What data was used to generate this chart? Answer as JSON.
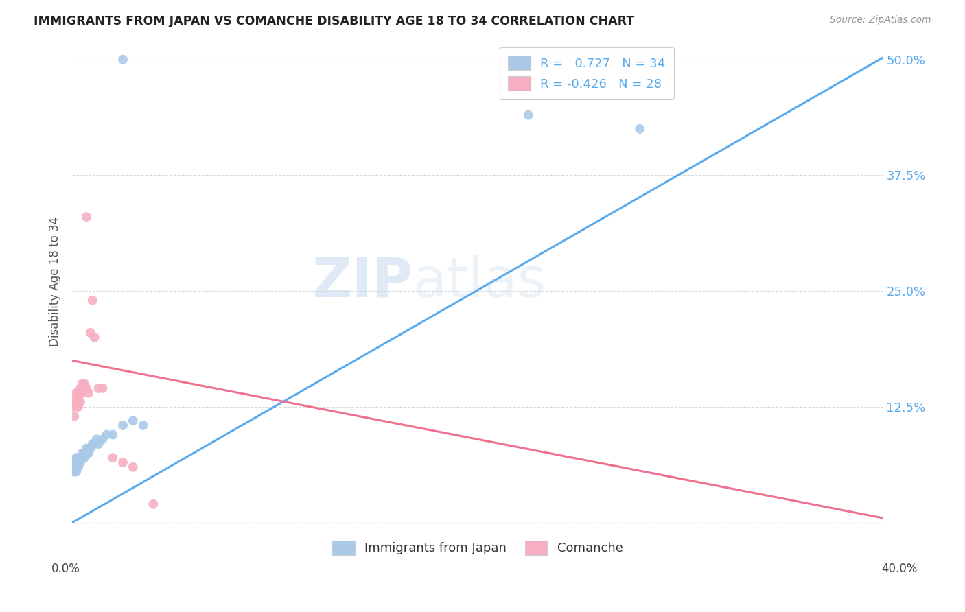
{
  "title": "IMMIGRANTS FROM JAPAN VS COMANCHE DISABILITY AGE 18 TO 34 CORRELATION CHART",
  "source": "Source: ZipAtlas.com",
  "ylabel": "Disability Age 18 to 34",
  "ytick_labels": [
    "",
    "12.5%",
    "25.0%",
    "37.5%",
    "50.0%"
  ],
  "ytick_values": [
    0.0,
    0.125,
    0.25,
    0.375,
    0.5
  ],
  "xlim": [
    0.0,
    0.4
  ],
  "ylim": [
    0.0,
    0.52
  ],
  "blue_color": "#aac9e8",
  "pink_color": "#f5afc0",
  "line_blue": "#5aaaee",
  "line_pink": "#f07090",
  "watermark_zip": "ZIP",
  "watermark_atlas": "atlas",
  "japan_x": [
    0.001,
    0.001,
    0.001,
    0.002,
    0.002,
    0.002,
    0.002,
    0.003,
    0.003,
    0.003,
    0.004,
    0.004,
    0.005,
    0.005,
    0.006,
    0.006,
    0.007,
    0.007,
    0.008,
    0.008,
    0.009,
    0.01,
    0.011,
    0.012,
    0.013,
    0.015,
    0.017,
    0.02,
    0.025,
    0.03,
    0.035,
    0.025,
    0.225,
    0.28
  ],
  "japan_y": [
    0.055,
    0.06,
    0.065,
    0.055,
    0.06,
    0.065,
    0.07,
    0.06,
    0.065,
    0.07,
    0.065,
    0.07,
    0.07,
    0.075,
    0.07,
    0.075,
    0.075,
    0.08,
    0.075,
    0.08,
    0.08,
    0.085,
    0.085,
    0.09,
    0.085,
    0.09,
    0.095,
    0.095,
    0.105,
    0.11,
    0.105,
    0.5,
    0.44,
    0.425
  ],
  "comanche_x": [
    0.001,
    0.001,
    0.002,
    0.002,
    0.002,
    0.003,
    0.003,
    0.003,
    0.004,
    0.004,
    0.004,
    0.005,
    0.005,
    0.005,
    0.006,
    0.006,
    0.007,
    0.007,
    0.008,
    0.009,
    0.01,
    0.011,
    0.013,
    0.015,
    0.02,
    0.025,
    0.03,
    0.04
  ],
  "comanche_y": [
    0.115,
    0.125,
    0.13,
    0.135,
    0.14,
    0.125,
    0.135,
    0.14,
    0.13,
    0.14,
    0.145,
    0.14,
    0.145,
    0.15,
    0.145,
    0.15,
    0.33,
    0.145,
    0.14,
    0.205,
    0.24,
    0.2,
    0.145,
    0.145,
    0.07,
    0.065,
    0.06,
    0.02
  ],
  "blue_line": [
    [
      0.0,
      0.0
    ],
    [
      0.4,
      0.502
    ]
  ],
  "pink_line": [
    [
      0.0,
      0.175
    ],
    [
      0.4,
      0.005
    ]
  ]
}
